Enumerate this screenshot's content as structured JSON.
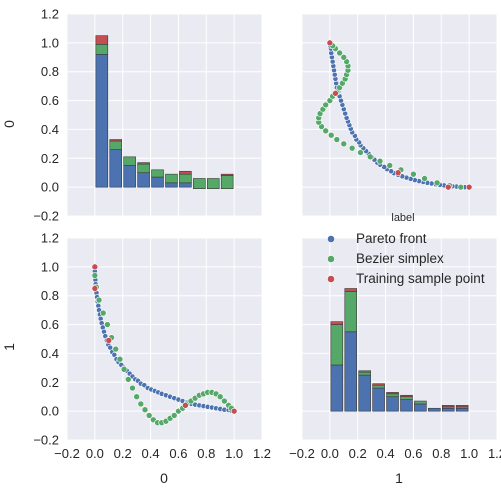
{
  "chart_data": {
    "type": "pairplot",
    "variables": [
      "0",
      "1"
    ],
    "axis_ticks": [
      "−0.2",
      "0.0",
      "0.2",
      "0.4",
      "0.6",
      "0.8",
      "1.0",
      "1.2"
    ],
    "axis_tick_values": [
      -0.2,
      0.0,
      0.2,
      0.4,
      0.6,
      0.8,
      1.0,
      1.2
    ],
    "xlim": [
      -0.2,
      1.2
    ],
    "ylim": [
      -0.2,
      1.2
    ],
    "hist_bin_range": [
      0.0,
      1.0
    ],
    "hist_bins": 10,
    "grid": true,
    "legend": {
      "title": "label",
      "placement": "right-middle",
      "entries": [
        {
          "name": "Pareto front",
          "color": "#4c72b0"
        },
        {
          "name": "Bezier simplex",
          "color": "#55a868"
        },
        {
          "name": "Training sample point",
          "color": "#c44e52"
        }
      ]
    },
    "colors": {
      "background": "#eaeaf2",
      "grid": "#ffffff",
      "pareto": "#4c72b0",
      "bezier": "#55a868",
      "training": "#c44e52"
    },
    "panels": [
      {
        "row": 0,
        "col": 0,
        "type": "stacked_histogram",
        "variable": "0",
        "series": [
          {
            "name": "Pareto front",
            "values": [
              0.92,
              0.26,
              0.15,
              0.1,
              0.07,
              0.03,
              0.03,
              -0.01,
              -0.01,
              -0.01
            ]
          },
          {
            "name": "Bezier simplex",
            "values": [
              0.07,
              0.06,
              0.06,
              0.06,
              0.05,
              0.06,
              0.06,
              0.07,
              0.07,
              0.09
            ]
          },
          {
            "name": "Training sample point",
            "values": [
              0.06,
              0.01,
              0.0,
              0.01,
              0.0,
              0.0,
              0.02,
              0.0,
              0.0,
              0.01
            ]
          }
        ]
      },
      {
        "row": 0,
        "col": 1,
        "type": "scatter",
        "x_var": "1",
        "y_var": "0"
      },
      {
        "row": 1,
        "col": 0,
        "type": "scatter",
        "x_var": "0",
        "y_var": "1"
      },
      {
        "row": 1,
        "col": 1,
        "type": "stacked_histogram",
        "variable": "1",
        "series": [
          {
            "name": "Pareto front",
            "values": [
              0.32,
              0.55,
              0.25,
              0.16,
              0.1,
              0.08,
              0.05,
              0.02,
              0.02,
              0.02
            ]
          },
          {
            "name": "Bezier simplex",
            "values": [
              0.28,
              0.28,
              0.02,
              0.02,
              0.02,
              0.02,
              0.02,
              0.0,
              0.01,
              0.01
            ]
          },
          {
            "name": "Training sample point",
            "values": [
              0.02,
              0.02,
              0.01,
              0.01,
              0.01,
              0.01,
              0.0,
              0.0,
              0.01,
              0.01
            ]
          }
        ]
      }
    ],
    "scatter_points": {
      "pareto": [
        [
          0.0,
          1.0
        ],
        [
          0.0,
          0.97
        ],
        [
          0.002,
          0.94
        ],
        [
          0.004,
          0.91
        ],
        [
          0.006,
          0.88
        ],
        [
          0.009,
          0.85
        ],
        [
          0.012,
          0.82
        ],
        [
          0.016,
          0.79
        ],
        [
          0.02,
          0.76
        ],
        [
          0.025,
          0.73
        ],
        [
          0.03,
          0.7
        ],
        [
          0.036,
          0.67
        ],
        [
          0.042,
          0.64
        ],
        [
          0.049,
          0.61
        ],
        [
          0.057,
          0.58
        ],
        [
          0.066,
          0.55
        ],
        [
          0.075,
          0.52
        ],
        [
          0.086,
          0.49
        ],
        [
          0.097,
          0.46
        ],
        [
          0.11,
          0.44
        ],
        [
          0.125,
          0.41
        ],
        [
          0.14,
          0.39
        ],
        [
          0.155,
          0.36
        ],
        [
          0.17,
          0.34
        ],
        [
          0.19,
          0.32
        ],
        [
          0.21,
          0.3
        ],
        [
          0.23,
          0.28
        ],
        [
          0.25,
          0.26
        ],
        [
          0.27,
          0.24
        ],
        [
          0.29,
          0.22
        ],
        [
          0.31,
          0.21
        ],
        [
          0.33,
          0.19
        ],
        [
          0.355,
          0.18
        ],
        [
          0.38,
          0.16
        ],
        [
          0.405,
          0.15
        ],
        [
          0.43,
          0.14
        ],
        [
          0.455,
          0.13
        ],
        [
          0.48,
          0.12
        ],
        [
          0.51,
          0.11
        ],
        [
          0.54,
          0.1
        ],
        [
          0.57,
          0.09
        ],
        [
          0.6,
          0.08
        ],
        [
          0.63,
          0.07
        ],
        [
          0.66,
          0.06
        ],
        [
          0.69,
          0.05
        ],
        [
          0.72,
          0.045
        ],
        [
          0.75,
          0.04
        ],
        [
          0.78,
          0.035
        ],
        [
          0.81,
          0.03
        ],
        [
          0.84,
          0.025
        ],
        [
          0.87,
          0.02
        ],
        [
          0.9,
          0.015
        ],
        [
          0.93,
          0.01
        ],
        [
          0.96,
          0.008
        ],
        [
          0.98,
          0.004
        ],
        [
          1.0,
          0.0
        ]
      ],
      "bezier": [
        [
          0.0,
          0.94
        ],
        [
          0.01,
          0.86
        ],
        [
          0.03,
          0.77
        ],
        [
          0.06,
          0.68
        ],
        [
          0.09,
          0.6
        ],
        [
          0.12,
          0.51
        ],
        [
          0.15,
          0.43
        ],
        [
          0.18,
          0.36
        ],
        [
          0.21,
          0.29
        ],
        [
          0.24,
          0.22
        ],
        [
          0.27,
          0.16
        ],
        [
          0.3,
          0.1
        ],
        [
          0.33,
          0.05
        ],
        [
          0.36,
          0.01
        ],
        [
          0.39,
          -0.03
        ],
        [
          0.42,
          -0.06
        ],
        [
          0.45,
          -0.08
        ],
        [
          0.48,
          -0.08
        ],
        [
          0.51,
          -0.07
        ],
        [
          0.54,
          -0.05
        ],
        [
          0.57,
          -0.03
        ],
        [
          0.6,
          0.0
        ],
        [
          0.63,
          0.02
        ],
        [
          0.66,
          0.05
        ],
        [
          0.69,
          0.07
        ],
        [
          0.72,
          0.09
        ],
        [
          0.75,
          0.11
        ],
        [
          0.78,
          0.12
        ],
        [
          0.81,
          0.13
        ],
        [
          0.84,
          0.13
        ],
        [
          0.87,
          0.12
        ],
        [
          0.9,
          0.1
        ],
        [
          0.93,
          0.07
        ],
        [
          0.96,
          0.04
        ],
        [
          0.98,
          0.02
        ]
      ],
      "training": [
        [
          0.0,
          1.0
        ],
        [
          0.0,
          0.85
        ],
        [
          0.1,
          0.49
        ],
        [
          0.65,
          0.04
        ],
        [
          1.0,
          0.0
        ]
      ]
    }
  }
}
